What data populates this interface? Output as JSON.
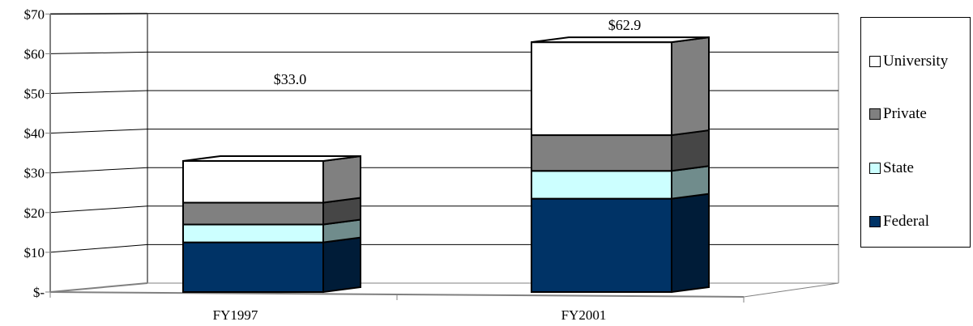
{
  "chart_data": {
    "type": "bar",
    "stacked": true,
    "three_d": true,
    "categories": [
      "FY1997",
      "FY2001"
    ],
    "series": [
      {
        "name": "Federal",
        "values": [
          12.5,
          23.5
        ],
        "color": "#003366"
      },
      {
        "name": "State",
        "values": [
          4.5,
          7.0
        ],
        "color": "#CCFFFF"
      },
      {
        "name": "Private",
        "values": [
          5.5,
          9.0
        ],
        "color": "#808080"
      },
      {
        "name": "University",
        "values": [
          10.5,
          23.4
        ],
        "color": "#FFFFFF"
      }
    ],
    "totals": [
      "$33.0",
      "$62.9"
    ],
    "y_ticks": [
      "$-",
      "$10",
      "$20",
      "$30",
      "$40",
      "$50",
      "$60",
      "$70"
    ],
    "ylim": [
      0,
      70
    ],
    "title": "",
    "xlabel": "",
    "ylabel": "",
    "grid": true,
    "legend_position": "right"
  }
}
